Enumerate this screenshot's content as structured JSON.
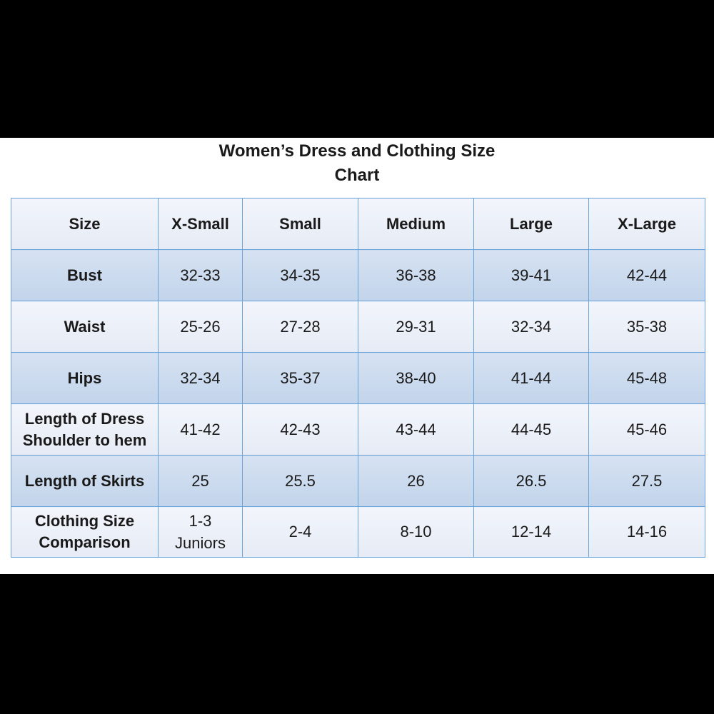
{
  "title_line1": "Women’s Dress and Clothing Size",
  "title_line2": "Chart",
  "header": [
    "Size",
    "X-Small",
    "Small",
    "Medium",
    "Large",
    "X-Large"
  ],
  "rows": [
    {
      "label": [
        "Bust"
      ],
      "cells": [
        [
          "32-33"
        ],
        [
          "34-35"
        ],
        [
          "36-38"
        ],
        [
          "39-41"
        ],
        [
          "42-44"
        ]
      ]
    },
    {
      "label": [
        "Waist"
      ],
      "cells": [
        [
          "25-26"
        ],
        [
          "27-28"
        ],
        [
          "29-31"
        ],
        [
          "32-34"
        ],
        [
          "35-38"
        ]
      ]
    },
    {
      "label": [
        "Hips"
      ],
      "cells": [
        [
          "32-34"
        ],
        [
          "35-37"
        ],
        [
          "38-40"
        ],
        [
          "41-44"
        ],
        [
          "45-48"
        ]
      ]
    },
    {
      "label": [
        "Length of Dress",
        "Shoulder to hem"
      ],
      "cells": [
        [
          "41-42"
        ],
        [
          "42-43"
        ],
        [
          "43-44"
        ],
        [
          "44-45"
        ],
        [
          "45-46"
        ]
      ]
    },
    {
      "label": [
        "Length of Skirts"
      ],
      "cells": [
        [
          "25"
        ],
        [
          "25.5"
        ],
        [
          "26"
        ],
        [
          "26.5"
        ],
        [
          "27.5"
        ]
      ]
    },
    {
      "label": [
        "Clothing Size",
        "Comparison"
      ],
      "cells": [
        [
          "1-3",
          "Juniors"
        ],
        [
          "2-4"
        ],
        [
          "8-10"
        ],
        [
          "12-14"
        ],
        [
          "14-16"
        ]
      ]
    }
  ],
  "colors": {
    "background": "#000000",
    "panel": "#ffffff",
    "border": "#6aa3d8",
    "row_light": "#eceff7",
    "row_dark": "#ccdbee"
  }
}
